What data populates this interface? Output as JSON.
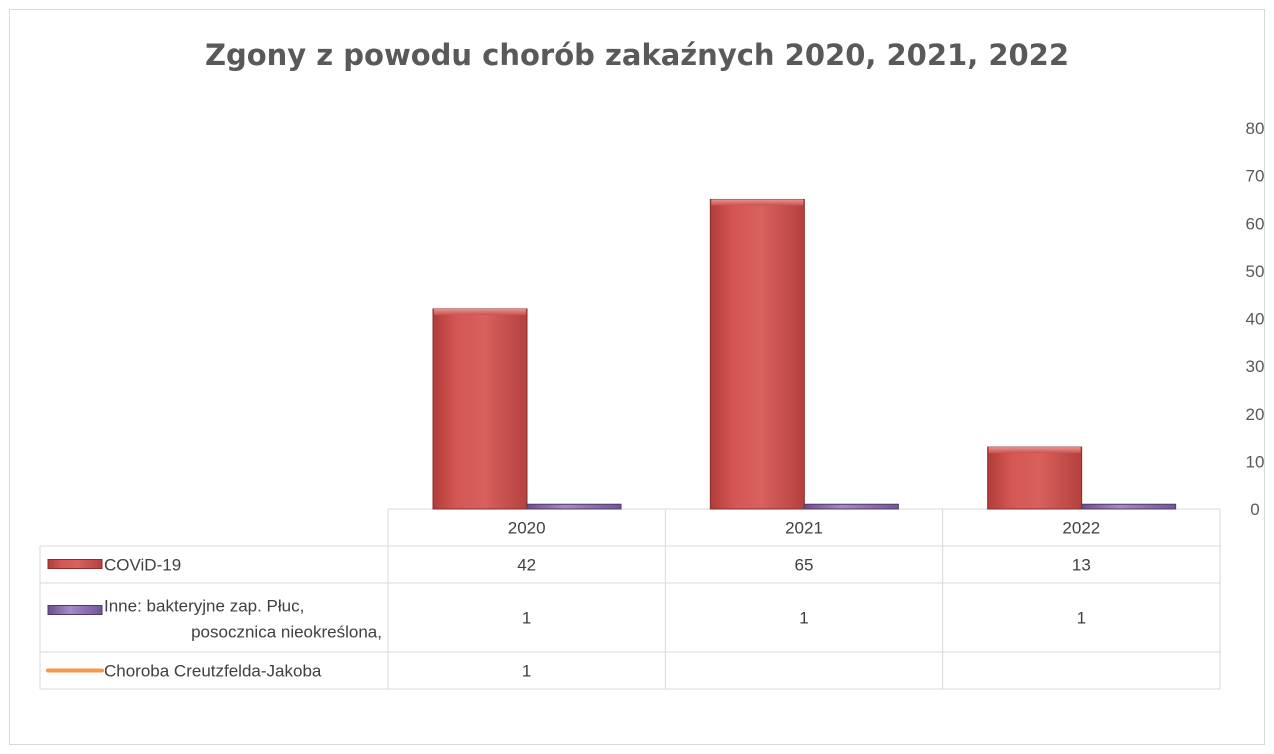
{
  "chart_data": {
    "type": "bar",
    "title": "Zgony z powodu chorób zakaźnych 2020, 2021, 2022",
    "categories": [
      "2020",
      "2021",
      "2022"
    ],
    "ylim": [
      0,
      80
    ],
    "yticks": [
      0,
      10,
      20,
      30,
      40,
      50,
      60,
      70,
      80
    ],
    "grid": false,
    "legend": "data-table",
    "series": [
      {
        "name": "COViD-19",
        "label_lines": [
          "COViD-19"
        ],
        "values": [
          42,
          65,
          13
        ],
        "labels": [
          "42",
          "65",
          "13"
        ],
        "color": "#c0504d",
        "kind": "bar"
      },
      {
        "name": "Inne: bakteryjne zap. Płuc, posocznica nieokreślona,",
        "label_lines": [
          "Inne: bakteryjne zap. Płuc,",
          "posocznica nieokreślona,"
        ],
        "values": [
          1,
          1,
          1
        ],
        "labels": [
          "1",
          "1",
          "1"
        ],
        "color": "#8064a2",
        "kind": "bar"
      },
      {
        "name": "Choroba Creutzfelda-Jakoba",
        "label_lines": [
          "Choroba Creutzfelda-Jakoba"
        ],
        "values": [
          1,
          null,
          null
        ],
        "labels": [
          "1",
          "",
          ""
        ],
        "color": "#f79646",
        "kind": "line"
      }
    ]
  }
}
